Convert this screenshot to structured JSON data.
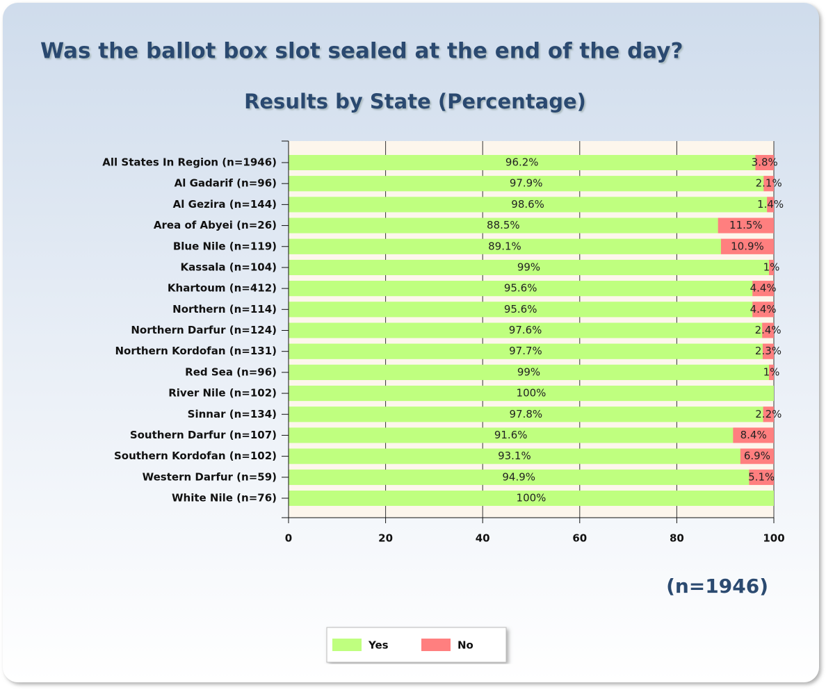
{
  "chart_data": {
    "type": "stacked-barh",
    "title": "Was the ballot box slot sealed at the end of the day?",
    "subtitle": "Results by State (Percentage)",
    "annotation": "(n=1946)",
    "categories": [
      "All States In Region (n=1946)",
      "Al Gadarif (n=96)",
      "Al Gezira (n=144)",
      "Area of Abyei (n=26)",
      "Blue Nile (n=119)",
      "Kassala (n=104)",
      "Khartoum (n=412)",
      "Northern (n=114)",
      "Northern Darfur (n=124)",
      "Northern Kordofan (n=131)",
      "Red Sea (n=96)",
      "River Nile (n=102)",
      "Sinnar (n=134)",
      "Southern Darfur (n=107)",
      "Southern Kordofan (n=102)",
      "Western Darfur (n=59)",
      "White Nile (n=76)"
    ],
    "series": [
      {
        "name": "Yes",
        "color": "#bfff7f",
        "values": [
          96.2,
          97.9,
          98.6,
          88.5,
          89.1,
          99,
          95.6,
          95.6,
          97.6,
          97.7,
          99,
          100,
          97.8,
          91.6,
          93.1,
          94.9,
          100
        ],
        "value_labels": [
          "96.2%",
          "97.9%",
          "98.6%",
          "88.5%",
          "89.1%",
          "99%",
          "95.6%",
          "95.6%",
          "97.6%",
          "97.7%",
          "99%",
          "100%",
          "97.8%",
          "91.6%",
          "93.1%",
          "94.9%",
          "100%"
        ]
      },
      {
        "name": "No",
        "color": "#ff7f7f",
        "values": [
          3.8,
          2.1,
          1.4,
          11.5,
          10.9,
          1,
          4.4,
          4.4,
          2.4,
          2.3,
          1,
          0,
          2.2,
          8.4,
          6.9,
          5.1,
          0
        ],
        "value_labels": [
          "3.8%",
          "2.1%",
          "1.4%",
          "11.5%",
          "10.9%",
          "1%",
          "4.4%",
          "4.4%",
          "2.4%",
          "2.3%",
          "1%",
          null,
          "2.2%",
          "8.4%",
          "6.9%",
          "5.1%",
          null
        ]
      }
    ],
    "xlim": [
      0,
      100
    ],
    "xticks": [
      0,
      20,
      40,
      60,
      80,
      100
    ],
    "grid": true,
    "legend": "bottom",
    "plot_background": "#fdf6ec"
  }
}
